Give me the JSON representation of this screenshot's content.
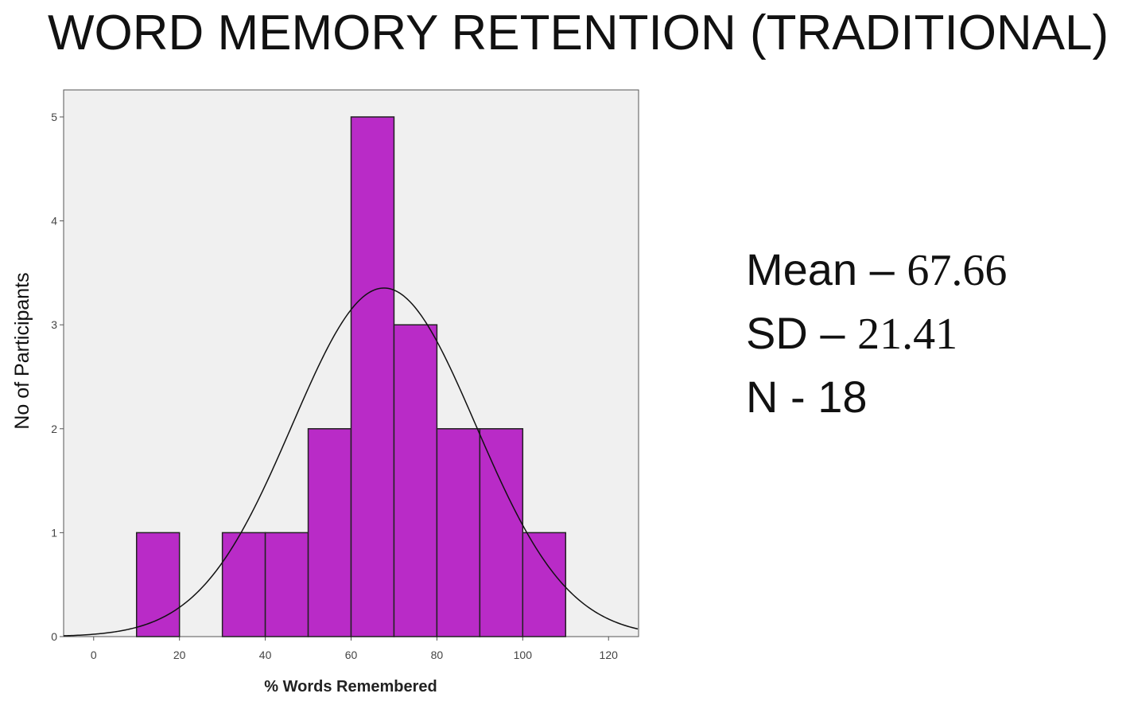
{
  "chart_data": {
    "type": "histogram",
    "title": "WORD MEMORY RETENTION (TRADITIONAL)",
    "xlabel": "% Words Remembered",
    "ylabel": "No of Participants",
    "bins": [
      10,
      20,
      30,
      40,
      50,
      60,
      70,
      80,
      90,
      100,
      110
    ],
    "values": [
      1,
      0,
      1,
      1,
      2,
      5,
      3,
      2,
      2,
      1
    ],
    "color": "#b92bc7",
    "xlim": [
      -7,
      127
    ],
    "xticks": [
      0,
      20,
      40,
      60,
      80,
      100,
      120
    ],
    "ylim": [
      0,
      5.26
    ],
    "yticks": [
      0,
      1,
      2,
      3,
      4,
      5
    ]
  },
  "stats": [
    {
      "label": "Mean –",
      "value": 67.66
    },
    {
      "label": "SD –",
      "value": 21.41
    },
    {
      "label": "N -",
      "value": 18
    }
  ]
}
